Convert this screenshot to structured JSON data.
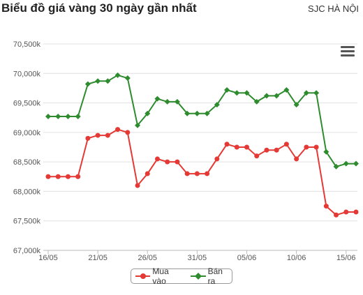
{
  "header": {
    "title": "Biểu đồ giá vàng 30 ngày gần nhất",
    "location": "SJC HÀ NỘI"
  },
  "menu": {
    "icon": "hamburger-menu-icon"
  },
  "chart_data": {
    "type": "line",
    "title": "Biểu đồ giá vàng 30 ngày gần nhất",
    "subtitle": "SJC HÀ NỘI",
    "xlabel": "",
    "ylabel": "",
    "x": [
      "16/05",
      "17/05",
      "18/05",
      "19/05",
      "20/05",
      "21/05",
      "22/05",
      "23/05",
      "24/05",
      "25/05",
      "26/05",
      "27/05",
      "28/05",
      "29/05",
      "30/05",
      "31/05",
      "01/06",
      "02/06",
      "03/06",
      "04/06",
      "05/06",
      "06/06",
      "07/06",
      "08/06",
      "09/06",
      "10/06",
      "11/06",
      "12/06",
      "13/06",
      "14/06",
      "15/06",
      "16/06"
    ],
    "x_tick_labels": [
      "16/05",
      "21/05",
      "26/05",
      "31/05",
      "05/06",
      "10/06",
      "15/06"
    ],
    "y_tick_labels": [
      "67,000k",
      "67,500k",
      "68,000k",
      "68,500k",
      "69,000k",
      "69,500k",
      "70,000k",
      "70,500k"
    ],
    "ylim": [
      67000,
      70500
    ],
    "grid": true,
    "legend_position": "bottom-center",
    "series": [
      {
        "name": "Mua vào",
        "color": "#e53935",
        "values": [
          68250,
          68250,
          68250,
          68250,
          68900,
          68950,
          68950,
          69050,
          69000,
          68100,
          68300,
          68550,
          68500,
          68500,
          68300,
          68300,
          68300,
          68550,
          68800,
          68750,
          68750,
          68600,
          68700,
          68700,
          68800,
          68550,
          68750,
          68750,
          67750,
          67600,
          67650,
          67650
        ]
      },
      {
        "name": "Bán ra",
        "color": "#2e8b2e",
        "values": [
          69270,
          69270,
          69270,
          69270,
          69820,
          69870,
          69870,
          69970,
          69920,
          69120,
          69320,
          69570,
          69520,
          69520,
          69320,
          69320,
          69320,
          69470,
          69720,
          69670,
          69670,
          69520,
          69620,
          69620,
          69720,
          69470,
          69670,
          69670,
          68670,
          68420,
          68470,
          68470
        ]
      }
    ]
  }
}
